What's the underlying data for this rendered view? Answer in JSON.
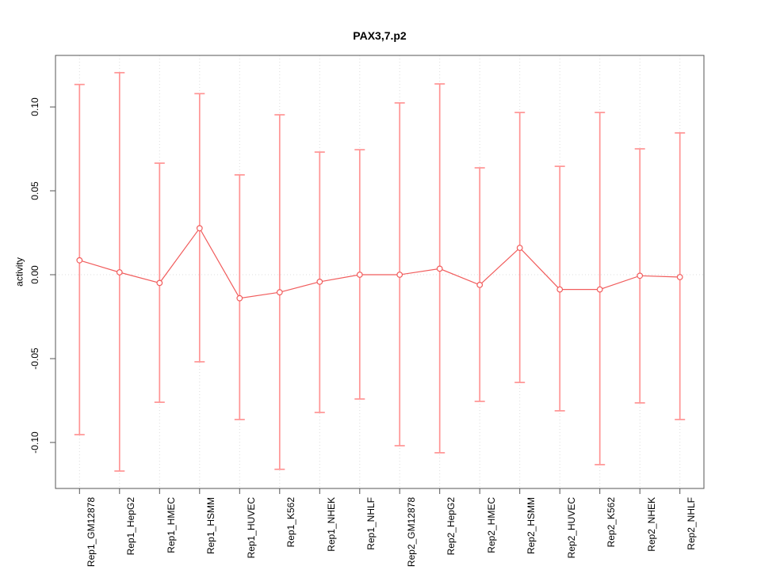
{
  "title": "PAX3,7.p2",
  "chart_data": {
    "type": "scatter",
    "subtype": "points-with-error-bars-connected-by-lines",
    "title": "PAX3,7.p2",
    "xlabel": "",
    "ylabel": "activity",
    "categories": [
      "Rep1_GM12878",
      "Rep1_HepG2",
      "Rep1_HMEC",
      "Rep1_HSMM",
      "Rep1_HUVEC",
      "Rep1_K562",
      "Rep1_NHEK",
      "Rep1_NHLF",
      "Rep2_GM12878",
      "Rep2_HepG2",
      "Rep2_HMEC",
      "Rep2_HSMM",
      "Rep2_HUVEC",
      "Rep2_K562",
      "Rep2_NHEK",
      "Rep2_NHLF"
    ],
    "series": [
      {
        "name": "activity",
        "values": [
          0.0086,
          0.0014,
          -0.0049,
          0.0277,
          -0.014,
          -0.0105,
          -0.0042,
          0.0,
          0.0,
          0.0036,
          -0.0061,
          0.016,
          -0.0088,
          -0.0088,
          -0.0006,
          -0.0014
        ],
        "upper": [
          0.1134,
          0.1204,
          0.0665,
          0.1079,
          0.0595,
          0.0953,
          0.0731,
          0.0745,
          0.1024,
          0.1137,
          0.0637,
          0.0967,
          0.0646,
          0.0967,
          0.075,
          0.0845
        ],
        "lower": [
          -0.0953,
          -0.117,
          -0.076,
          -0.0519,
          -0.0863,
          -0.116,
          -0.0821,
          -0.0741,
          -0.1019,
          -0.1061,
          -0.0755,
          -0.0642,
          -0.0811,
          -0.1132,
          -0.0764,
          -0.0863
        ]
      }
    ],
    "ylim": [
      -0.1274,
      0.1307
    ],
    "yticks": [
      0.1,
      0.05,
      0.0,
      -0.05,
      -0.1
    ],
    "ytick_labels": [
      "0.10",
      "0.05",
      "0.00",
      "-0.05",
      "-0.10"
    ],
    "grid": "dotted vertical line at every category; dotted horizontal line at y=0; legend none",
    "colors": {
      "series_line": "#f15c5c",
      "point_stroke": "#f15c5c",
      "point_fill": "#ffffff",
      "whisker": "#ff9494",
      "grid_line": "#dcdcdc",
      "axis_frame": "#555555",
      "text": "#000000",
      "background": "#ffffff"
    }
  }
}
